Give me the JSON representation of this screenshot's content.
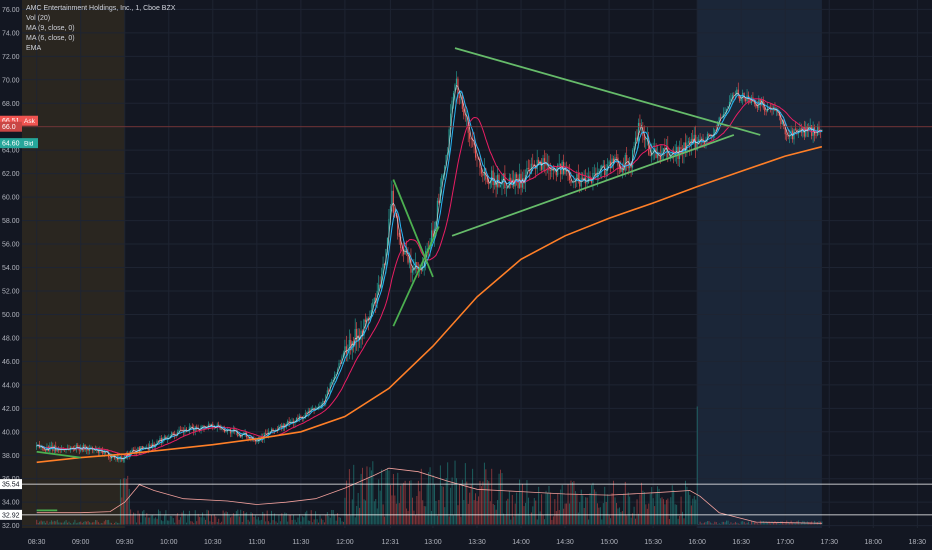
{
  "chart_data": {
    "type": "candlestick",
    "symbol_title": "AMC Entertainment Holdings, Inc., 1, Cboe BZX",
    "indicators": [
      "Vol (20)",
      "MA (9, close, 0)",
      "MA (6, close, 0)",
      "EMA"
    ],
    "y_ticks": [
      32.0,
      34.0,
      36.0,
      38.0,
      40.0,
      42.0,
      44.0,
      46.0,
      48.0,
      50.0,
      52.0,
      54.0,
      56.0,
      58.0,
      60.0,
      62.0,
      64.0,
      66.0,
      68.0,
      70.0,
      72.0,
      74.0,
      76.0
    ],
    "y_tick_labels": [
      "32.00",
      "34.00",
      "36.00",
      "38.00",
      "40.00",
      "42.00",
      "44.00",
      "46.00",
      "48.00",
      "50.00",
      "52.00",
      "54.00",
      "56.00",
      "58.00",
      "60.00",
      "62.00",
      "64.00",
      "66.00",
      "68.00",
      "70.00",
      "72.00",
      "74.00",
      "76.00"
    ],
    "ylim": [
      31.8,
      76.8
    ],
    "x_ticks": [
      "08:30",
      "09:00",
      "09:30",
      "10:00",
      "10:30",
      "11:00",
      "11:30",
      "12:00",
      "12:31",
      "13:00",
      "13:30",
      "14:00",
      "14:30",
      "15:00",
      "15:30",
      "16:00",
      "16:30",
      "17:00",
      "17:30",
      "18:00",
      "18:30"
    ],
    "x_tick_minutes": [
      510,
      540,
      570,
      600,
      630,
      660,
      690,
      720,
      751,
      780,
      810,
      840,
      870,
      900,
      930,
      960,
      990,
      1020,
      1050,
      1080,
      1110
    ],
    "xlim": [
      500,
      1120
    ],
    "price_path": [
      [
        510,
        38.7
      ],
      [
        525,
        38.5
      ],
      [
        540,
        38.7
      ],
      [
        555,
        38.2
      ],
      [
        567,
        37.7
      ],
      [
        575,
        38.3
      ],
      [
        590,
        38.9
      ],
      [
        600,
        39.7
      ],
      [
        615,
        40.2
      ],
      [
        630,
        40.6
      ],
      [
        645,
        39.9
      ],
      [
        660,
        39.4
      ],
      [
        675,
        40.3
      ],
      [
        690,
        41.2
      ],
      [
        705,
        42.4
      ],
      [
        720,
        47.0
      ],
      [
        735,
        49.3
      ],
      [
        745,
        52.8
      ],
      [
        752,
        60.0
      ],
      [
        758,
        56.0
      ],
      [
        765,
        54.0
      ],
      [
        772,
        53.5
      ],
      [
        780,
        57.0
      ],
      [
        790,
        64.0
      ],
      [
        795,
        70.2
      ],
      [
        805,
        65.3
      ],
      [
        815,
        62.0
      ],
      [
        825,
        61.3
      ],
      [
        840,
        61.5
      ],
      [
        855,
        63.0
      ],
      [
        870,
        62.2
      ],
      [
        880,
        61.4
      ],
      [
        890,
        62.0
      ],
      [
        900,
        62.8
      ],
      [
        915,
        62.9
      ],
      [
        920,
        65.8
      ],
      [
        930,
        63.6
      ],
      [
        945,
        63.7
      ],
      [
        955,
        64.3
      ],
      [
        960,
        64.8
      ],
      [
        970,
        65.2
      ],
      [
        985,
        68.8
      ],
      [
        995,
        68.4
      ],
      [
        1005,
        67.8
      ],
      [
        1015,
        67.0
      ],
      [
        1022,
        65.3
      ],
      [
        1035,
        65.7
      ],
      [
        1045,
        65.6
      ]
    ],
    "ema_path": [
      [
        510,
        37.4
      ],
      [
        540,
        37.8
      ],
      [
        570,
        38.1
      ],
      [
        600,
        38.5
      ],
      [
        630,
        38.9
      ],
      [
        660,
        39.4
      ],
      [
        690,
        40.0
      ],
      [
        720,
        41.3
      ],
      [
        750,
        43.7
      ],
      [
        780,
        47.3
      ],
      [
        810,
        51.5
      ],
      [
        840,
        54.7
      ],
      [
        870,
        56.7
      ],
      [
        900,
        58.2
      ],
      [
        930,
        59.5
      ],
      [
        960,
        60.9
      ],
      [
        990,
        62.2
      ],
      [
        1020,
        63.5
      ],
      [
        1045,
        64.3
      ]
    ],
    "volume_ma_path": [
      [
        510,
        33.1
      ],
      [
        540,
        33.1
      ],
      [
        560,
        33.2
      ],
      [
        570,
        34.0
      ],
      [
        580,
        35.5
      ],
      [
        590,
        35.0
      ],
      [
        610,
        34.3
      ],
      [
        640,
        34.1
      ],
      [
        660,
        33.8
      ],
      [
        680,
        34.0
      ],
      [
        700,
        34.3
      ],
      [
        720,
        35.2
      ],
      [
        740,
        36.3
      ],
      [
        750,
        36.9
      ],
      [
        770,
        36.6
      ],
      [
        790,
        35.8
      ],
      [
        810,
        35.1
      ],
      [
        840,
        34.9
      ],
      [
        870,
        34.7
      ],
      [
        900,
        34.6
      ],
      [
        930,
        34.8
      ],
      [
        955,
        35.0
      ],
      [
        962,
        34.5
      ],
      [
        975,
        33.1
      ],
      [
        1000,
        32.3
      ],
      [
        1045,
        32.2
      ]
    ],
    "trendlines": [
      {
        "points": [
          [
            510,
            38.3
          ],
          [
            540,
            37.8
          ]
        ],
        "color": "#4caf50"
      },
      {
        "points": [
          [
            510,
            33.3
          ],
          [
            524,
            33.3
          ]
        ],
        "color": "#4caf50"
      },
      {
        "points": [
          [
            753,
            61.5
          ],
          [
            780,
            53.2
          ]
        ],
        "color": "#4caf50"
      },
      {
        "points": [
          [
            753,
            49.0
          ],
          [
            784,
            57.5
          ]
        ],
        "color": "#4caf50"
      },
      {
        "points": [
          [
            795,
            72.7
          ],
          [
            1003,
            65.3
          ]
        ],
        "color": "#66bb6a"
      },
      {
        "points": [
          [
            793,
            56.7
          ],
          [
            985,
            65.3
          ]
        ],
        "color": "#66bb6a"
      }
    ],
    "current_price": 66.0,
    "ask": {
      "label": "66.51",
      "tag": "Ask",
      "value": 66.51
    },
    "price_label": {
      "label": "66.0",
      "value": 66.0
    },
    "bid": {
      "label": "64.60",
      "tag": "Bid",
      "value": 64.6
    },
    "pane_labels": [
      {
        "label": "35.54",
        "value": 35.54
      },
      {
        "label": "32.92",
        "value": 32.92
      }
    ],
    "sessions": [
      {
        "name": "premarket",
        "start": 500,
        "end": 570,
        "color": "#2a2620"
      },
      {
        "name": "afterhours",
        "start": 960,
        "end": 1045,
        "color": "#1b2638"
      }
    ],
    "colors": {
      "up": "#26a69a",
      "down": "#ef5350",
      "ema": "#ff7f27",
      "ma9": "#e91e63",
      "ma6": "#29b6f6",
      "trend": "#66bb6a",
      "vol_ma": "#f2a09c",
      "bg": "#131722"
    },
    "grid": true
  }
}
